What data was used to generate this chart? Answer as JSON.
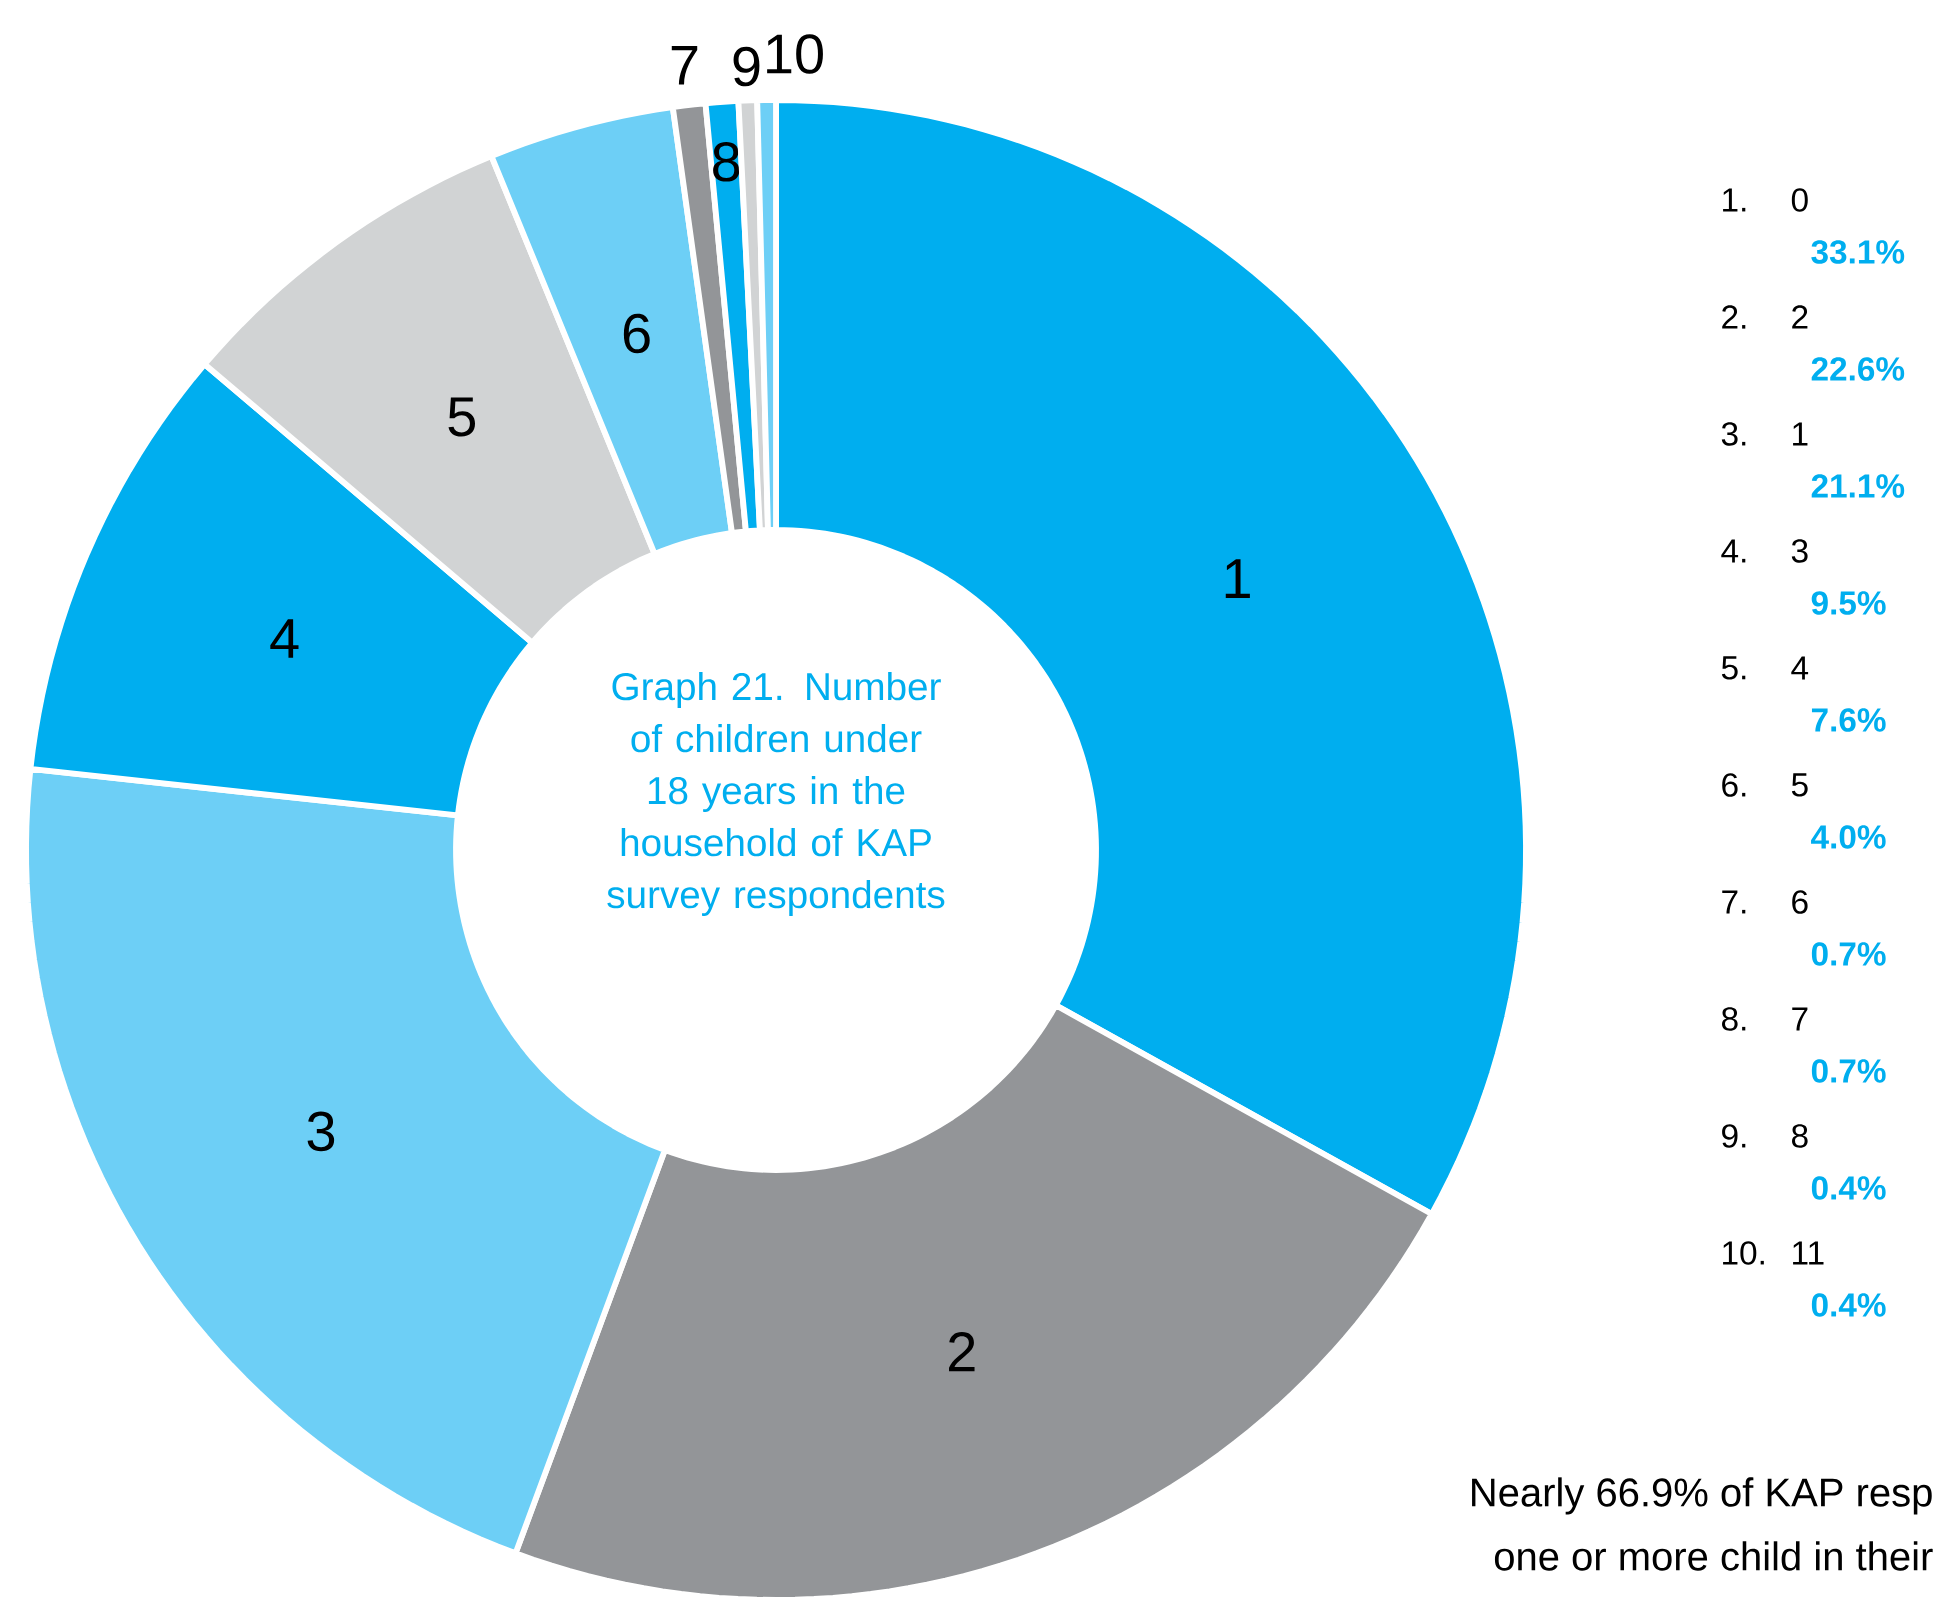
{
  "chart_data": {
    "type": "donut",
    "title": "Graph 21. Number of children under 18 years in the household of KAP survey respondents",
    "categories": [
      "1",
      "2",
      "3",
      "4",
      "5",
      "6",
      "7",
      "8",
      "9",
      "10"
    ],
    "values": [
      33.1,
      22.6,
      21.1,
      9.5,
      7.6,
      4.0,
      0.7,
      0.7,
      0.4,
      0.4
    ],
    "colors": [
      "#00aeef",
      "#939598",
      "#6dcff6",
      "#00aeef",
      "#d1d3d4",
      "#6dcff6",
      "#939598",
      "#00aeef",
      "#d1d3d4",
      "#6dcff6"
    ],
    "annotations": [
      {
        "text": "1.",
        "x": "1"
      },
      {
        "text": "0",
        "x": "1"
      },
      {
        "text": "33.1%",
        "x": "1"
      },
      {
        "text": "2.",
        "x": "2"
      },
      {
        "text": "2",
        "x": "2"
      },
      {
        "text": "22.6%",
        "x": "2"
      },
      {
        "text": "3.",
        "x": "3"
      },
      {
        "text": "1",
        "x": "3"
      },
      {
        "text": "21.1%",
        "x": "3"
      },
      {
        "text": "4.",
        "x": "4"
      },
      {
        "text": "3",
        "x": "4"
      },
      {
        "text": "9.5%",
        "x": "4"
      },
      {
        "text": "5.",
        "x": "5"
      },
      {
        "text": "4",
        "x": "5"
      },
      {
        "text": "7.6%",
        "x": "5"
      },
      {
        "text": "6.",
        "x": "6"
      },
      {
        "text": "5",
        "x": "6"
      },
      {
        "text": "4.0%",
        "x": "6"
      },
      {
        "text": "7.",
        "x": "7"
      },
      {
        "text": "6",
        "x": "7"
      },
      {
        "text": "0.7%",
        "x": "7"
      },
      {
        "text": "8.",
        "x": "8"
      },
      {
        "text": "7",
        "x": "8"
      },
      {
        "text": "0.7%",
        "x": "8"
      },
      {
        "text": "9.",
        "x": "9"
      },
      {
        "text": "8",
        "x": "9"
      },
      {
        "text": "0.4%",
        "x": "9"
      },
      {
        "text": "10.",
        "x": "10"
      },
      {
        "text": "11",
        "x": "10"
      },
      {
        "text": "0.4%",
        "x": "10"
      },
      "Nearly 66.9% of KAP resp",
      "one or more child in their"
    ]
  }
}
